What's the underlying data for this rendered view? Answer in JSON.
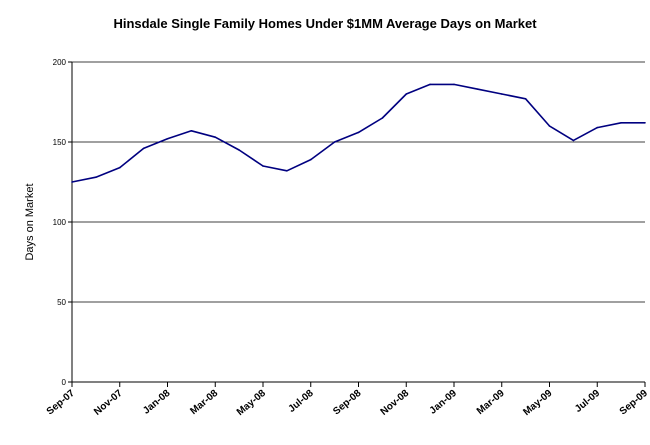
{
  "chart_data": {
    "type": "line",
    "title": "Hinsdale Single Family Homes Under $1MM Average Days on Market",
    "xlabel": "",
    "ylabel": "Days on Market",
    "ylim": [
      0,
      200
    ],
    "yticks": [
      "0",
      "50",
      "100",
      "150",
      "200"
    ],
    "grid": true,
    "legend": "none",
    "line_color": "#000080",
    "x": [
      "Sep-07",
      "Oct-07",
      "Nov-07",
      "Dec-07",
      "Jan-08",
      "Feb-08",
      "Mar-08",
      "Apr-08",
      "May-08",
      "Jun-08",
      "Jul-08",
      "Aug-08",
      "Sep-08",
      "Oct-08",
      "Nov-08",
      "Dec-08",
      "Jan-09",
      "Feb-09",
      "Mar-09",
      "Apr-09",
      "May-09",
      "Jun-09",
      "Jul-09",
      "Aug-09",
      "Sep-09"
    ],
    "xtick_labels": [
      "Sep-07",
      "Nov-07",
      "Jan-08",
      "Mar-08",
      "May-08",
      "Jul-08",
      "Sep-08",
      "Nov-08",
      "Jan-09",
      "Mar-09",
      "May-09",
      "Jul-09",
      "Sep-09"
    ],
    "series": [
      {
        "values": [
          125,
          128,
          134,
          146,
          152,
          157,
          153,
          145,
          135,
          132,
          139,
          150,
          156,
          165,
          180,
          186,
          186,
          183,
          180,
          177,
          160,
          151,
          159,
          162,
          162
        ]
      }
    ]
  }
}
